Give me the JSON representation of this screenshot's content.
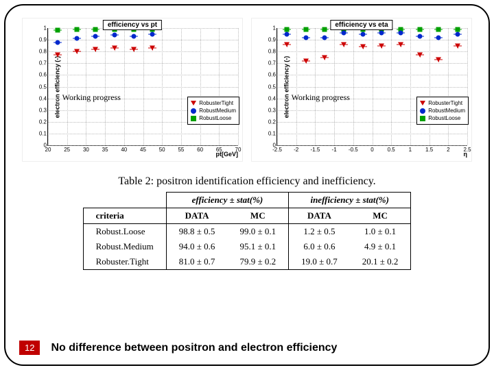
{
  "colors": {
    "tight": "#cc0000",
    "medium": "#0028cc",
    "loose": "#00a000",
    "grid": "#bbbbbb",
    "page_badge_bg": "#c00000"
  },
  "legend": {
    "tight": "RobusterTight",
    "medium": "RobustMedium",
    "loose": "RobustLoose"
  },
  "chart_pt": {
    "title": "efficiency vs pt",
    "y_label": "electron efficiency (-)",
    "x_label": "pt[GeV]",
    "wp_label": "Working progress",
    "wp_pos": {
      "left_pct": 18,
      "top_pct": 52
    },
    "y_range": [
      0,
      1
    ],
    "y_ticks": [
      0,
      0.1,
      0.2,
      0.3,
      0.4,
      0.5,
      0.6,
      0.7,
      0.8,
      0.9,
      1
    ],
    "x_range": [
      20,
      70
    ],
    "x_ticks": [
      20,
      25,
      30,
      35,
      40,
      45,
      50,
      55,
      60,
      65,
      70
    ],
    "series": {
      "loose": [
        {
          "x": 22.5,
          "y": 0.98
        },
        {
          "x": 27.5,
          "y": 0.99
        },
        {
          "x": 32.5,
          "y": 0.99
        },
        {
          "x": 37.5,
          "y": 0.99
        },
        {
          "x": 42.5,
          "y": 0.99
        },
        {
          "x": 47.5,
          "y": 0.99
        }
      ],
      "medium": [
        {
          "x": 22.5,
          "y": 0.88
        },
        {
          "x": 27.5,
          "y": 0.91
        },
        {
          "x": 32.5,
          "y": 0.93
        },
        {
          "x": 37.5,
          "y": 0.94
        },
        {
          "x": 42.5,
          "y": 0.93
        },
        {
          "x": 47.5,
          "y": 0.95
        }
      ],
      "tight": [
        {
          "x": 22.5,
          "y": 0.77
        },
        {
          "x": 27.5,
          "y": 0.8
        },
        {
          "x": 32.5,
          "y": 0.82
        },
        {
          "x": 37.5,
          "y": 0.83
        },
        {
          "x": 42.5,
          "y": 0.82
        },
        {
          "x": 47.5,
          "y": 0.83
        }
      ]
    }
  },
  "chart_eta": {
    "title": "efficiency vs eta",
    "y_label": "electron efficiency (-)",
    "x_label": "η",
    "wp_label": "Working progress",
    "wp_pos": {
      "left_pct": 18,
      "top_pct": 52
    },
    "y_range": [
      0,
      1
    ],
    "y_ticks": [
      0,
      0.1,
      0.2,
      0.3,
      0.4,
      0.5,
      0.6,
      0.7,
      0.8,
      0.9,
      1
    ],
    "x_range": [
      -2.5,
      2.5
    ],
    "x_ticks": [
      -2.5,
      -2,
      -1.5,
      -1,
      -0.5,
      0,
      0.5,
      1,
      1.5,
      2,
      2.5
    ],
    "series": {
      "loose": [
        {
          "x": -2.25,
          "y": 0.99
        },
        {
          "x": -1.75,
          "y": 0.99
        },
        {
          "x": -1.25,
          "y": 0.99
        },
        {
          "x": -0.75,
          "y": 0.99
        },
        {
          "x": -0.25,
          "y": 0.99
        },
        {
          "x": 0.25,
          "y": 0.99
        },
        {
          "x": 0.75,
          "y": 0.99
        },
        {
          "x": 1.25,
          "y": 0.99
        },
        {
          "x": 1.75,
          "y": 0.99
        },
        {
          "x": 2.25,
          "y": 0.99
        }
      ],
      "medium": [
        {
          "x": -2.25,
          "y": 0.95
        },
        {
          "x": -1.75,
          "y": 0.92
        },
        {
          "x": -1.25,
          "y": 0.92
        },
        {
          "x": -0.75,
          "y": 0.96
        },
        {
          "x": -0.25,
          "y": 0.95
        },
        {
          "x": 0.25,
          "y": 0.96
        },
        {
          "x": 0.75,
          "y": 0.96
        },
        {
          "x": 1.25,
          "y": 0.93
        },
        {
          "x": 1.75,
          "y": 0.92
        },
        {
          "x": 2.25,
          "y": 0.95
        }
      ],
      "tight": [
        {
          "x": -2.25,
          "y": 0.86
        },
        {
          "x": -1.75,
          "y": 0.72
        },
        {
          "x": -1.25,
          "y": 0.75
        },
        {
          "x": -0.75,
          "y": 0.86
        },
        {
          "x": -0.25,
          "y": 0.84
        },
        {
          "x": 0.25,
          "y": 0.85
        },
        {
          "x": 0.75,
          "y": 0.86
        },
        {
          "x": 1.25,
          "y": 0.77
        },
        {
          "x": 1.75,
          "y": 0.73
        },
        {
          "x": 2.25,
          "y": 0.85
        }
      ]
    }
  },
  "table": {
    "caption": "Table 2: positron identification efficiency and inefficiency.",
    "header_groups": {
      "eff": "efficiency ± stat(%)",
      "ineff": "inefficiency ± stat(%)"
    },
    "subheaders": {
      "criteria": "criteria",
      "data": "DATA",
      "mc": "MC"
    },
    "rows": [
      {
        "criteria": "Robust.Loose",
        "eff_data": "98.8 ± 0.5",
        "eff_mc": "99.0 ± 0.1",
        "ineff_data": "1.2 ± 0.5",
        "ineff_mc": "1.0 ± 0.1"
      },
      {
        "criteria": "Robust.Medium",
        "eff_data": "94.0 ± 0.6",
        "eff_mc": "95.1 ± 0.1",
        "ineff_data": "6.0 ± 0.6",
        "ineff_mc": "4.9 ± 0.1"
      },
      {
        "criteria": "Robuster.Tight",
        "eff_data": "81.0 ± 0.7",
        "eff_mc": "79.9 ± 0.2",
        "ineff_data": "19.0 ± 0.7",
        "ineff_mc": "20.1 ± 0.2"
      }
    ]
  },
  "footer": {
    "page": "12",
    "conclusion": "No difference between positron and electron efficiency"
  }
}
